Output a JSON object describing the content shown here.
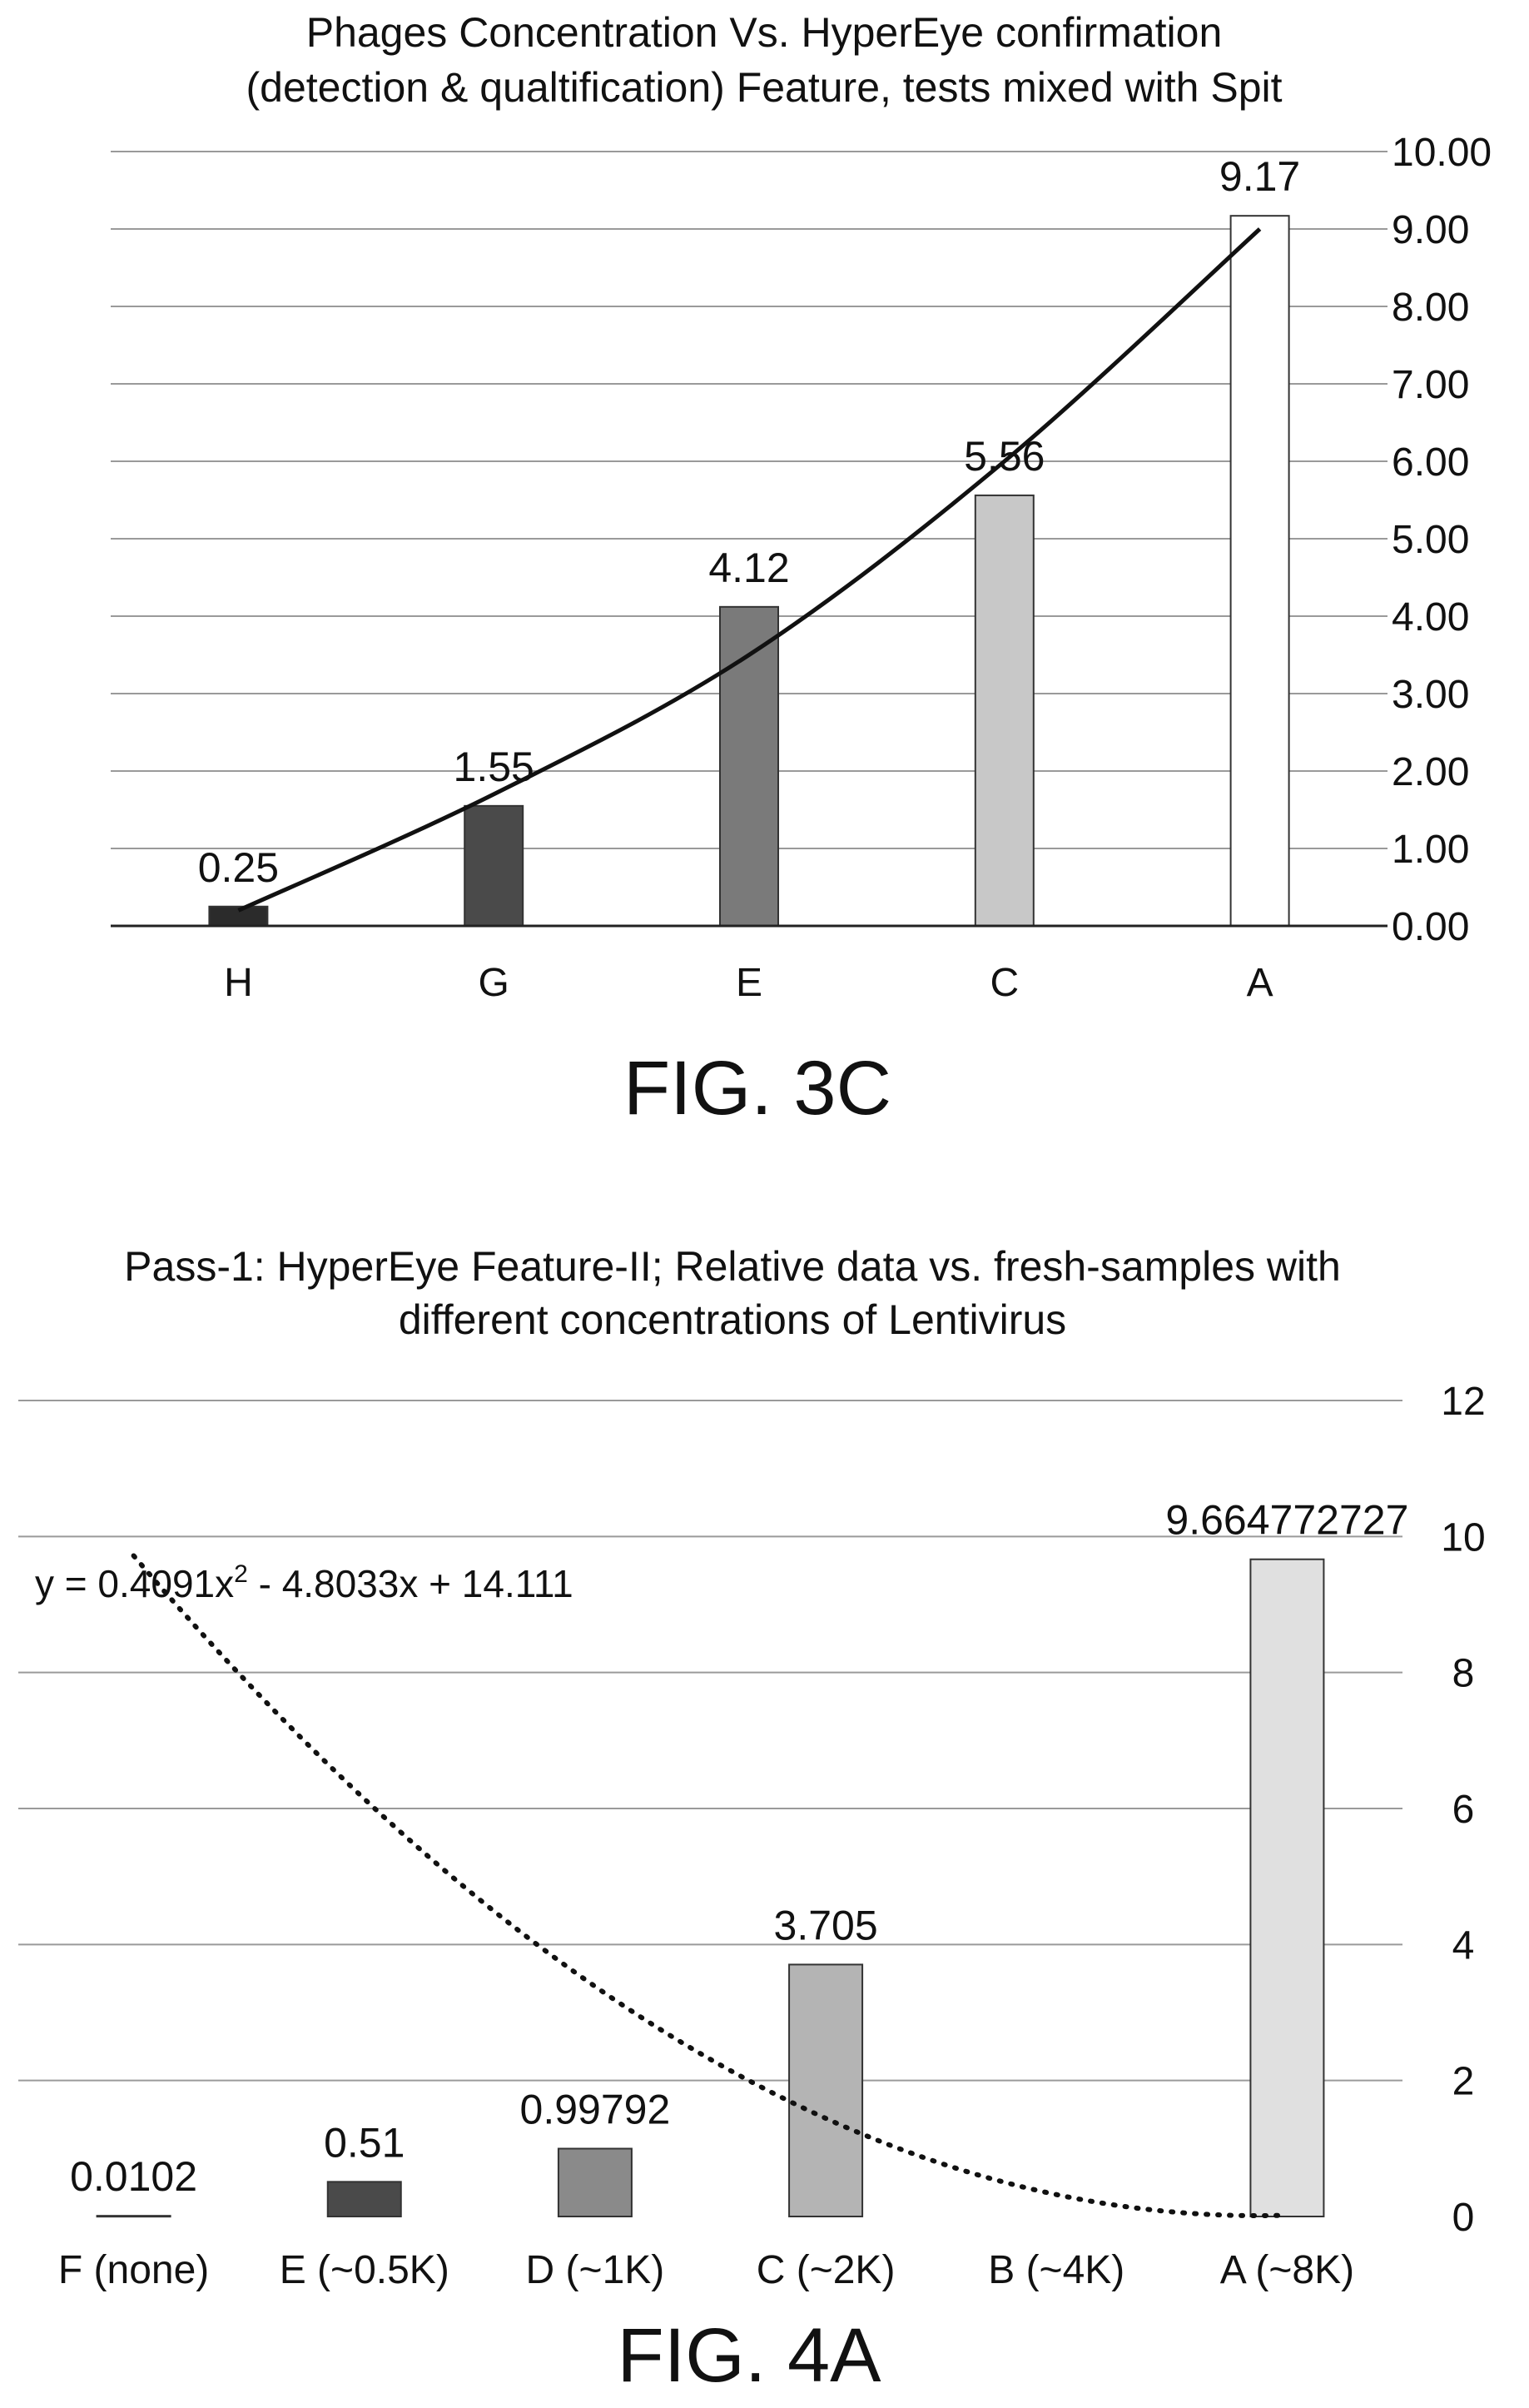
{
  "chart_data": [
    {
      "type": "bar",
      "figure_label": "FIG. 3C",
      "title_lines": [
        "Phages Concentration Vs. HyperEye confirmation",
        "(detection & qualtification) Feature, tests mixed with Spit"
      ],
      "categories": [
        "H",
        "G",
        "E",
        "C",
        "A"
      ],
      "values": [
        0.25,
        1.55,
        4.12,
        5.56,
        9.17
      ],
      "data_labels": [
        "0.25",
        "1.55",
        "4.12",
        "5.56",
        "9.17"
      ],
      "bar_colors": [
        "#2b2b2b",
        "#4a4a4a",
        "#7a7a7a",
        "#c8c8c8",
        "#ffffff"
      ],
      "yaxis_position": "right",
      "ylim": [
        0,
        10
      ],
      "yticks": [
        0,
        1,
        2,
        3,
        4,
        5,
        6,
        7,
        8,
        9,
        10
      ],
      "ytick_labels": [
        "0.00",
        "1.00",
        "2.00",
        "3.00",
        "4.00",
        "5.00",
        "6.00",
        "7.00",
        "8.00",
        "9.00",
        "10.00"
      ],
      "grid": true,
      "trendline": {
        "style": "solid",
        "values": [
          0.2,
          1.7,
          3.5,
          6.0,
          9.0
        ]
      }
    },
    {
      "type": "bar",
      "figure_label": "FIG. 4A",
      "title_lines": [
        "Pass-1: HyperEye Feature-II; Relative data vs. fresh-samples with",
        "different concentrations of Lentivirus"
      ],
      "categories": [
        "F (none)",
        "E (~0.5K)",
        "D (~1K)",
        "C (~2K)",
        "B (~4K)",
        "A (~8K)"
      ],
      "values": [
        0.0102,
        0.51,
        0.99792,
        3.705,
        null,
        9.664772727
      ],
      "data_labels": [
        "0.0102",
        "0.51",
        "0.99792",
        "3.705",
        "",
        "9.664772727"
      ],
      "bar_colors": [
        "#d0d0d0",
        "#4a4a4a",
        "#8a8a8a",
        "#b4b4b4",
        "#cccccc",
        "#e0e0e0"
      ],
      "yaxis_position": "right",
      "ylim": [
        0,
        12
      ],
      "yticks": [
        0,
        2,
        4,
        6,
        8,
        10,
        12
      ],
      "ytick_labels": [
        "0",
        "2",
        "4",
        "6",
        "8",
        "10",
        "12"
      ],
      "grid": true,
      "trendline": {
        "style": "dotted",
        "equation_base": "y = 0.4091x",
        "equation_exp": "2",
        "equation_rest": " - 4.8033x + 14.111",
        "coefficients": [
          0.4091,
          -4.8033,
          14.111
        ]
      }
    }
  ]
}
